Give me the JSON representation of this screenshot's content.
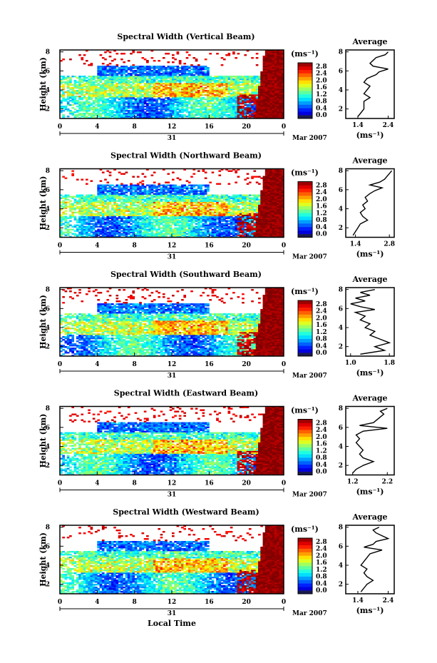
{
  "chart_data": [
    {
      "type": "heatmap",
      "title": "Spectral Width (Vertical Beam)",
      "ylabel": "Height (km)",
      "xlabel": "",
      "x_ticks": [
        "0",
        "4",
        "8",
        "12",
        "16",
        "20",
        "0"
      ],
      "x_range_hours": [
        0,
        24
      ],
      "day_label": "31",
      "date_label": "Mar 2007",
      "y_ticks": [
        "2",
        "4",
        "6",
        "8"
      ],
      "ylim": [
        1,
        8.2
      ],
      "colorbar": {
        "unit": "(ms⁻¹)",
        "ticks": [
          "0.0",
          "0.4",
          "0.8",
          "1.2",
          "1.6",
          "2.0",
          "2.4",
          "2.8"
        ],
        "range": [
          0,
          3.0
        ]
      },
      "average_profile": {
        "title": "Average",
        "xlabel": "(ms⁻¹)",
        "x_ticks": [
          "1.4",
          "2.4"
        ],
        "xlim": [
          1.0,
          2.6
        ],
        "y_ticks": [
          "2",
          "4",
          "6",
          "8"
        ],
        "heights": [
          1.2,
          1.6,
          2.0,
          2.4,
          2.8,
          3.2,
          3.6,
          4.0,
          4.4,
          4.8,
          5.2,
          5.6,
          5.9,
          6.2,
          6.5,
          6.8,
          7.1,
          7.4,
          7.7,
          8.0
        ],
        "values": [
          1.4,
          1.5,
          1.6,
          1.6,
          1.6,
          1.8,
          1.6,
          1.7,
          1.8,
          1.6,
          1.7,
          2.0,
          2.1,
          2.4,
          1.9,
          1.8,
          1.9,
          2.0,
          2.3,
          2.4
        ]
      }
    },
    {
      "type": "heatmap",
      "title": "Spectral Width (Northward Beam)",
      "ylabel": "Height (km)",
      "xlabel": "",
      "x_ticks": [
        "0",
        "4",
        "8",
        "12",
        "16",
        "20",
        "0"
      ],
      "x_range_hours": [
        0,
        24
      ],
      "day_label": "31",
      "date_label": "Mar 2007",
      "y_ticks": [
        "2",
        "4",
        "6",
        "8"
      ],
      "ylim": [
        1,
        8.2
      ],
      "colorbar": {
        "unit": "(ms⁻¹)",
        "ticks": [
          "0.0",
          "0.4",
          "0.8",
          "1.2",
          "1.6",
          "2.0",
          "2.4",
          "2.8"
        ],
        "range": [
          0,
          3.0
        ]
      },
      "average_profile": {
        "title": "Average",
        "xlabel": "(ms⁻¹)",
        "x_ticks": [
          "1.4",
          "2.8"
        ],
        "xlim": [
          1.0,
          3.0
        ],
        "y_ticks": [
          "2",
          "4",
          "6",
          "8"
        ],
        "heights": [
          1.2,
          1.6,
          2.0,
          2.4,
          2.8,
          3.2,
          3.6,
          4.0,
          4.4,
          4.8,
          5.2,
          5.6,
          5.9,
          6.2,
          6.5,
          6.8,
          7.1,
          7.4,
          7.7,
          8.0
        ],
        "values": [
          1.3,
          1.4,
          1.5,
          1.6,
          1.9,
          1.7,
          1.6,
          1.8,
          1.7,
          1.9,
          1.8,
          2.0,
          2.2,
          2.5,
          2.0,
          2.4,
          2.6,
          2.7,
          2.8,
          2.9
        ]
      }
    },
    {
      "type": "heatmap",
      "title": "Spectral Width (Southward Beam)",
      "ylabel": "Height (km)",
      "xlabel": "",
      "x_ticks": [
        "0",
        "4",
        "8",
        "12",
        "16",
        "20",
        "0"
      ],
      "x_range_hours": [
        0,
        24
      ],
      "day_label": "31",
      "date_label": "Mar 2007",
      "y_ticks": [
        "2",
        "4",
        "6",
        "8"
      ],
      "ylim": [
        1,
        8.2
      ],
      "colorbar": {
        "unit": "(ms⁻¹)",
        "ticks": [
          "0.0",
          "0.4",
          "0.8",
          "1.2",
          "1.6",
          "2.0",
          "2.4",
          "2.8"
        ],
        "range": [
          0,
          3.0
        ]
      },
      "average_profile": {
        "title": "Average",
        "xlabel": "(ms⁻¹)",
        "x_ticks": [
          "1.0",
          "1.8"
        ],
        "xlim": [
          0.9,
          1.9
        ],
        "y_ticks": [
          "2",
          "4",
          "6",
          "8"
        ],
        "heights": [
          1.2,
          1.6,
          2.0,
          2.4,
          2.8,
          3.2,
          3.6,
          4.0,
          4.4,
          4.8,
          5.2,
          5.6,
          5.9,
          6.2,
          6.5,
          6.8,
          7.1,
          7.4,
          7.7,
          8.0
        ],
        "values": [
          1.2,
          1.7,
          1.5,
          1.8,
          1.6,
          1.4,
          1.5,
          1.3,
          1.4,
          1.2,
          1.3,
          1.1,
          1.5,
          1.2,
          1.0,
          1.3,
          1.1,
          1.4,
          1.2,
          1.5
        ]
      }
    },
    {
      "type": "heatmap",
      "title": "Spectral Width (Eastward Beam)",
      "ylabel": "Height (km)",
      "xlabel": "",
      "x_ticks": [
        "0",
        "4",
        "8",
        "12",
        "16",
        "20",
        "0"
      ],
      "x_range_hours": [
        0,
        24
      ],
      "day_label": "31",
      "date_label": "Mar 2007",
      "y_ticks": [
        "2",
        "4",
        "6",
        "8"
      ],
      "ylim": [
        1,
        8.2
      ],
      "colorbar": {
        "unit": "(ms⁻¹)",
        "ticks": [
          "0.0",
          "0.4",
          "0.8",
          "1.2",
          "1.6",
          "2.0",
          "2.4",
          "2.8"
        ],
        "range": [
          0,
          3.0
        ]
      },
      "average_profile": {
        "title": "Average",
        "xlabel": "(ms⁻¹)",
        "x_ticks": [
          "1.2",
          "2.2"
        ],
        "xlim": [
          1.0,
          2.4
        ],
        "y_ticks": [
          "2",
          "4",
          "6",
          "8"
        ],
        "heights": [
          1.2,
          1.6,
          2.0,
          2.4,
          2.8,
          3.2,
          3.6,
          4.0,
          4.4,
          4.8,
          5.2,
          5.6,
          5.9,
          6.2,
          6.5,
          6.8,
          7.1,
          7.4,
          7.7,
          8.0
        ],
        "values": [
          1.2,
          1.3,
          1.5,
          1.8,
          1.5,
          1.4,
          1.5,
          1.4,
          1.3,
          1.4,
          1.3,
          1.5,
          2.2,
          1.4,
          1.8,
          1.9,
          2.0,
          2.1,
          2.0,
          2.2
        ]
      }
    },
    {
      "type": "heatmap",
      "title": "Spectral Width (Westward Beam)",
      "ylabel": "Height (km)",
      "xlabel": "Local Time",
      "x_ticks": [
        "0",
        "4",
        "8",
        "12",
        "16",
        "20",
        "0"
      ],
      "x_range_hours": [
        0,
        24
      ],
      "day_label": "31",
      "date_label": "Mar 2007",
      "y_ticks": [
        "2",
        "4",
        "6",
        "8"
      ],
      "ylim": [
        1,
        8.2
      ],
      "colorbar": {
        "unit": "(ms⁻¹)",
        "ticks": [
          "0.0",
          "0.4",
          "0.8",
          "1.2",
          "1.6",
          "2.0",
          "2.4",
          "2.8"
        ],
        "range": [
          0,
          3.0
        ]
      },
      "average_profile": {
        "title": "Average",
        "xlabel": "(ms⁻¹)",
        "x_ticks": [
          "1.4",
          "2.4"
        ],
        "xlim": [
          1.0,
          2.6
        ],
        "y_ticks": [
          "2",
          "4",
          "6",
          "8"
        ],
        "heights": [
          1.2,
          1.6,
          2.0,
          2.4,
          2.8,
          3.2,
          3.6,
          4.0,
          4.4,
          4.8,
          5.2,
          5.6,
          5.9,
          6.2,
          6.5,
          6.8,
          7.1,
          7.4,
          7.7,
          8.0
        ],
        "values": [
          1.5,
          1.6,
          1.7,
          1.9,
          1.7,
          1.6,
          1.7,
          1.5,
          1.6,
          1.7,
          1.8,
          2.2,
          1.6,
          1.9,
          2.0,
          2.4,
          2.2,
          2.0,
          1.9,
          2.1
        ]
      }
    }
  ]
}
